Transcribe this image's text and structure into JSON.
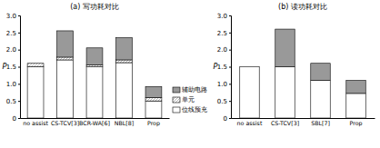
{
  "chart_data": [
    {
      "type": "bar",
      "stacked": true,
      "title": "(a) 写功耗对比",
      "y_label": "P",
      "categories": [
        "no assist",
        "CS-TCV[3]",
        "BCR-WA[6]",
        "NBL[8]",
        "Prop"
      ],
      "series": [
        {
          "name": "位线预充",
          "color": "#ffffff",
          "values": [
            1.5,
            1.7,
            1.5,
            1.62,
            0.5
          ]
        },
        {
          "name": "单元",
          "color": "#8c8c8c",
          "line_style": "hatched",
          "values": [
            0.1,
            0.08,
            0.05,
            0.08,
            0.1
          ]
        },
        {
          "name": "辅助电路",
          "color": "#999999",
          "values": [
            0,
            0.77,
            0.5,
            0.65,
            0.32
          ]
        }
      ],
      "ylim": [
        0,
        3
      ],
      "yticks": [
        0,
        0.5,
        {
          "value": 1,
          "label": "1.0"
        },
        1.5,
        {
          "value": 2,
          "label": "2.0"
        },
        2.5,
        {
          "value": 3,
          "label": "3.0"
        }
      ],
      "legend": "right"
    },
    {
      "type": "bar",
      "stacked": true,
      "title": "(b) 读功耗对比",
      "y_label": "P",
      "categories": [
        "no assist",
        "CS-TCV[3]",
        "SBL[7]",
        "Prop"
      ],
      "series": [
        {
          "name": "位线预充",
          "color": "#ffffff",
          "values": [
            1.5,
            1.5,
            1.1,
            0.72
          ]
        },
        {
          "name": "辅助电路",
          "color": "#999999",
          "values": [
            0,
            1.1,
            0.5,
            0.38
          ]
        }
      ],
      "ylim": [
        0,
        3
      ],
      "yticks": [
        0,
        0.5,
        {
          "value": 1,
          "label": "1.0"
        },
        1.5,
        {
          "value": 2,
          "label": "2.0"
        },
        2.5,
        {
          "value": 3,
          "label": "3.0"
        }
      ]
    }
  ]
}
